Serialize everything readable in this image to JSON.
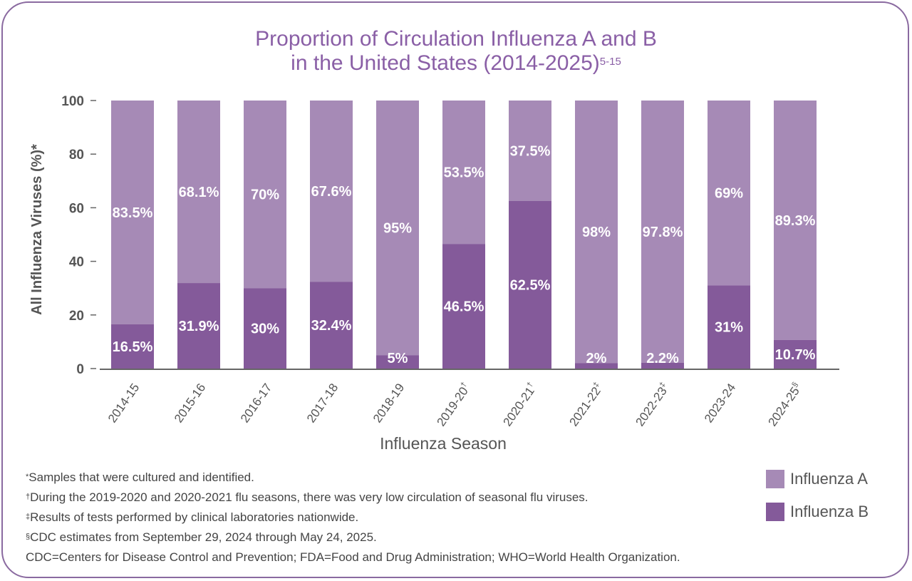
{
  "colors": {
    "influenza_a": "#a68ab6",
    "influenza_b": "#845a9a",
    "title": "#8a5fa6",
    "axis": "#666666",
    "bar_label": "#ffffff"
  },
  "chart_data": {
    "type": "bar",
    "stacked": true,
    "title_line1": "Proportion of Circulation Influenza A and B",
    "title_line2": "in the United States (2014-2025)",
    "title_superscript": "5-15",
    "xlabel": "Influenza Season",
    "ylabel": "All Influenza Viruses (%)*",
    "ylim": [
      0,
      100
    ],
    "yticks": [
      "0",
      "20",
      "40",
      "60",
      "80",
      "100"
    ],
    "categories": [
      "2014-15",
      "2015-16",
      "2016-17",
      "2017-18",
      "2018-19",
      "2019-20",
      "2020-21",
      "2021-22",
      "2022-23",
      "2023-24",
      "2024-25"
    ],
    "category_marks": [
      "",
      "",
      "",
      "",
      "",
      "†",
      "†",
      "‡",
      "‡",
      "",
      "§"
    ],
    "series": [
      {
        "name": "Influenza B",
        "values": [
          16.5,
          31.9,
          30,
          32.4,
          5,
          46.5,
          62.5,
          2,
          2.2,
          31,
          10.7
        ],
        "labels": [
          "16.5%",
          "31.9%",
          "30%",
          "32.4%",
          "5%",
          "46.5%",
          "62.5%",
          "2%",
          "2.2%",
          "31%",
          "10.7%"
        ]
      },
      {
        "name": "Influenza A",
        "values": [
          83.5,
          68.1,
          70,
          67.6,
          95,
          53.5,
          37.5,
          98,
          97.8,
          69,
          89.3
        ],
        "labels": [
          "83.5%",
          "68.1%",
          "70%",
          "67.6%",
          "95%",
          "53.5%",
          "37.5%",
          "98%",
          "97.8%",
          "69%",
          "89.3%"
        ]
      }
    ],
    "legend": [
      "Influenza A",
      "Influenza B"
    ],
    "grid": false,
    "legend_position": "bottom-right"
  },
  "footnotes": [
    {
      "mark": "*",
      "text": "Samples that were cultured and identified."
    },
    {
      "mark": "†",
      "text": "During the 2019-2020 and 2020-2021 flu seasons, there was very low circulation of seasonal flu viruses."
    },
    {
      "mark": "‡",
      "text": "Results of tests performed by clinical laboratories nationwide."
    },
    {
      "mark": "§",
      "text": "CDC estimates from September 29, 2024 through May 24, 2025."
    },
    {
      "mark": "",
      "text": " CDC=Centers for Disease Control and Prevention; FDA=Food and Drug Administration; WHO=World Health Organization."
    }
  ]
}
